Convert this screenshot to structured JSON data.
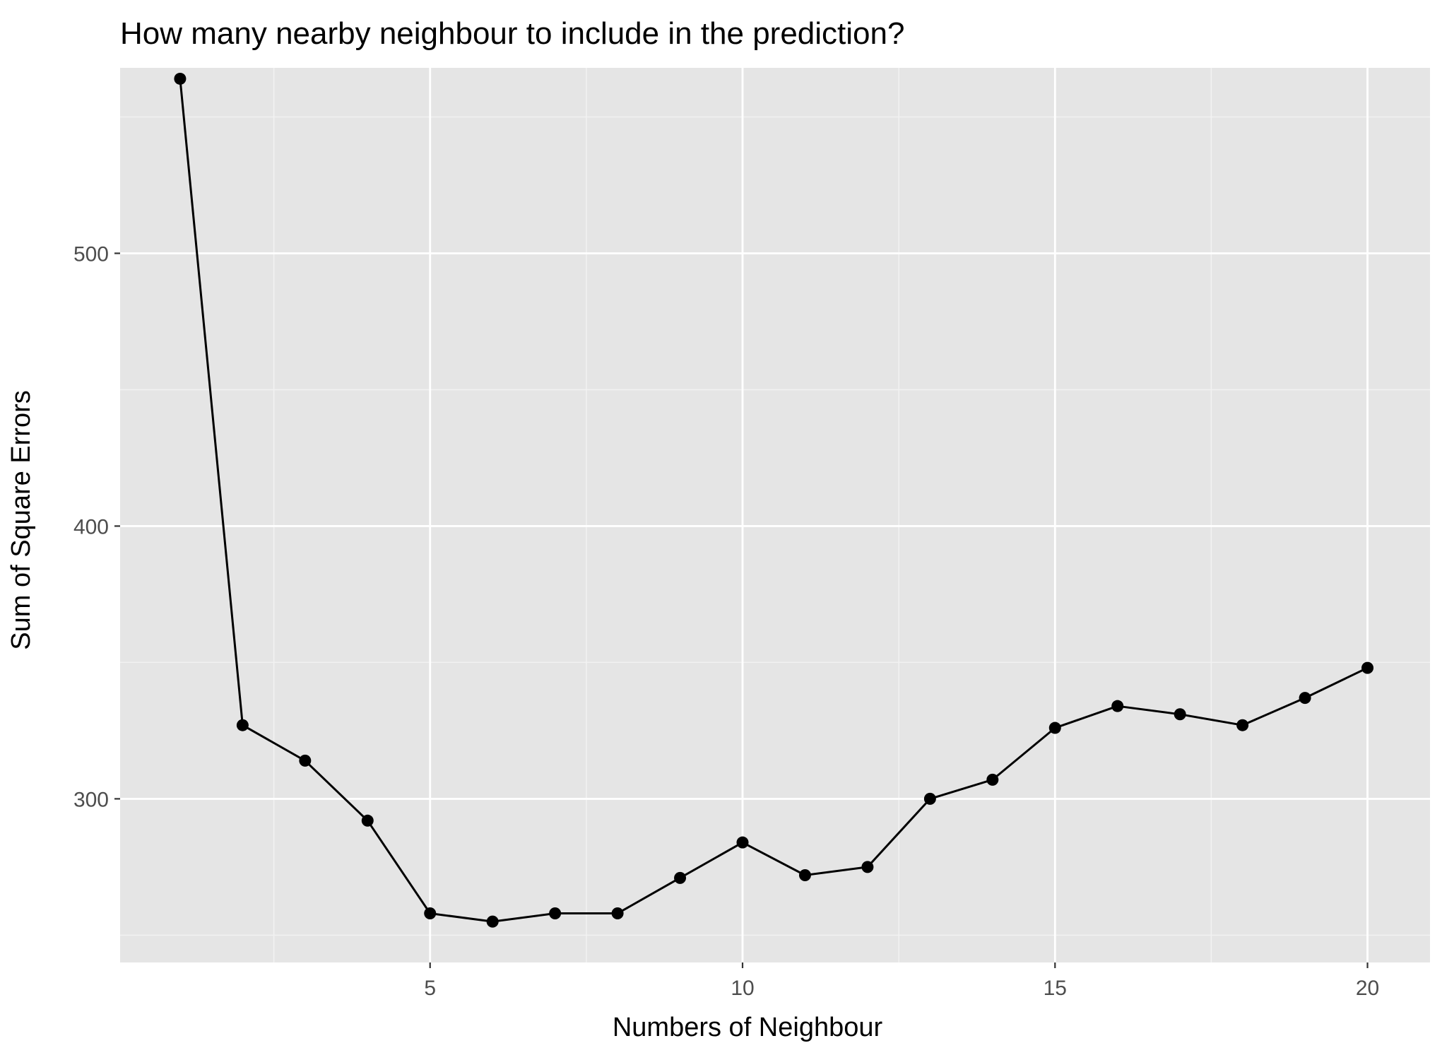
{
  "colors": {
    "panel_background": "#e5e5e5",
    "grid_major": "#ffffff",
    "grid_minor": "#f2f2f2",
    "line": "#000000",
    "point": "#000000",
    "tick_mark": "#333333"
  },
  "chart_data": {
    "type": "line",
    "markers": true,
    "title": "How many nearby neighbour to include in the prediction?",
    "xlabel": "Numbers of Neighbour",
    "ylabel": "Sum of Square Errors",
    "xlim": [
      0.04,
      21.0
    ],
    "ylim": [
      240,
      568
    ],
    "grid": true,
    "legend": "none",
    "x_ticks": [
      5,
      10,
      15,
      20
    ],
    "x_tick_labels": [
      "5",
      "10",
      "15",
      "20"
    ],
    "y_ticks": [
      300,
      400,
      500
    ],
    "y_tick_labels": [
      "300",
      "400",
      "500"
    ],
    "series": [
      {
        "x": [
          1,
          2,
          3,
          4,
          5,
          6,
          7,
          8,
          9,
          10,
          11,
          12,
          13,
          14,
          15,
          16,
          17,
          18,
          19,
          20
        ],
        "y": [
          564,
          327,
          314,
          292,
          258,
          255,
          258,
          258,
          271,
          284,
          272,
          275,
          300,
          307,
          326,
          334,
          331,
          327,
          337,
          348
        ]
      }
    ]
  }
}
